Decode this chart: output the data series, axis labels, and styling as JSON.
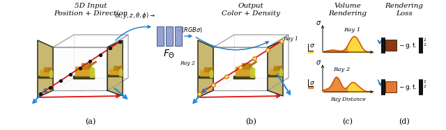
{
  "title_a": "5D Input\nPosition + Direction",
  "title_b": "Output\nColor + Density",
  "title_c": "Volume\nRendering",
  "title_d": "Rendering\nLoss",
  "label_a": "(a)",
  "label_b": "(b)",
  "label_c": "(c)",
  "label_d": "(d)",
  "bg_color": "#ffffff",
  "box_color": "#aaaaaa",
  "panel_fill": "#e8e8e8",
  "panel_edge": "#222222",
  "ray_red": "#DD1111",
  "ray_orange": "#E86010",
  "ray_blue": "#2288DD",
  "arrow_blue": "#1177CC",
  "nn_face": "#8899CC",
  "nn_edge": "#445588",
  "sample_fill": "#FFDD88",
  "sample_edge": "#CC8800",
  "dot_color": "#111111",
  "curve_orange": "#E87820",
  "curve_yellow": "#FFD020",
  "curve_line": "#CC5500",
  "box1_color": "#8B3A10",
  "box2_color": "#E87830",
  "norm_color": "#111111",
  "ax_color": "#222222",
  "img_yellow": "#D4A020",
  "img_dark": "#332200",
  "img_fill": "#C8A848"
}
